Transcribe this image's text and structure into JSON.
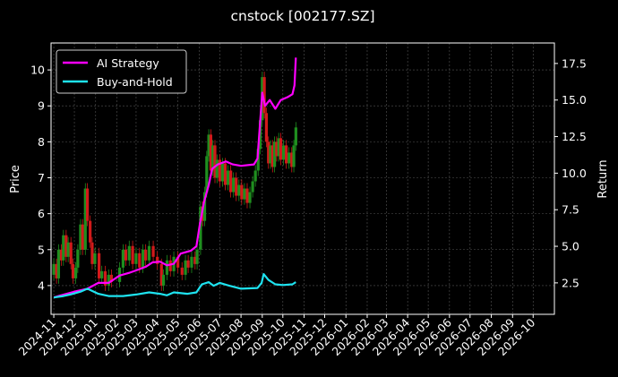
{
  "chart_data": {
    "type": "line",
    "title": "cnstock [002177.SZ]",
    "xlabel": "",
    "ylabel": "Price",
    "y2label": "Return",
    "x_ticks": [
      "2024-11",
      "2024-12",
      "2025-01",
      "2025-02",
      "2025-03",
      "2025-04",
      "2025-05",
      "2025-06",
      "2025-07",
      "2025-08",
      "2025-09",
      "2025-10",
      "2025-11",
      "2025-12",
      "2026-01",
      "2026-02",
      "2026-03",
      "2026-04",
      "2026-05",
      "2026-06",
      "2026-07",
      "2026-08",
      "2026-09",
      "2026-10"
    ],
    "y_ticks": [
      "4",
      "5",
      "6",
      "7",
      "8",
      "9",
      "10"
    ],
    "y2_ticks": [
      "2.5",
      "5.0",
      "7.5",
      "10.0",
      "12.5",
      "15.0",
      "17.5"
    ],
    "ylim": [
      3.2,
      10.75
    ],
    "y2lim": [
      0.35,
      18.9
    ],
    "xlim": [
      "2024-10-28",
      "2026-11-01"
    ],
    "grid": true,
    "legend_position": "top-left",
    "colors": {
      "background": "#000000",
      "axis": "#ffffff",
      "grid": "#555555",
      "up_candle": "#1f8f1f",
      "down_candle": "#d11a1a",
      "strategy": "#ff00ff",
      "buy_and_hold": "#1ee3f0"
    },
    "series": [
      {
        "name": "AI Strategy",
        "axis": "right",
        "points": [
          [
            "2024-11-01",
            1.5
          ],
          [
            "2024-11-08",
            1.6
          ],
          [
            "2024-11-20",
            1.75
          ],
          [
            "2024-12-05",
            1.95
          ],
          [
            "2024-12-20",
            2.1
          ],
          [
            "2025-01-05",
            2.5
          ],
          [
            "2025-01-20",
            2.5
          ],
          [
            "2025-02-05",
            3.0
          ],
          [
            "2025-02-20",
            3.2
          ],
          [
            "2025-03-01",
            3.35
          ],
          [
            "2025-03-15",
            3.6
          ],
          [
            "2025-03-25",
            3.9
          ],
          [
            "2025-04-05",
            3.95
          ],
          [
            "2025-04-15",
            3.7
          ],
          [
            "2025-04-25",
            3.8
          ],
          [
            "2025-05-05",
            4.5
          ],
          [
            "2025-05-20",
            4.7
          ],
          [
            "2025-05-28",
            5.0
          ],
          [
            "2025-06-02",
            6.5
          ],
          [
            "2025-06-08",
            8.0
          ],
          [
            "2025-06-15",
            9.2
          ],
          [
            "2025-06-20",
            10.3
          ],
          [
            "2025-06-28",
            10.6
          ],
          [
            "2025-07-10",
            10.8
          ],
          [
            "2025-07-20",
            10.6
          ],
          [
            "2025-08-01",
            10.5
          ],
          [
            "2025-08-20",
            10.6
          ],
          [
            "2025-08-25",
            11.0
          ],
          [
            "2025-09-01",
            15.5
          ],
          [
            "2025-09-05",
            14.6
          ],
          [
            "2025-09-12",
            15.0
          ],
          [
            "2025-09-20",
            14.4
          ],
          [
            "2025-09-28",
            15.0
          ],
          [
            "2025-10-08",
            15.2
          ],
          [
            "2025-10-15",
            15.4
          ],
          [
            "2025-10-18",
            16.0
          ],
          [
            "2025-10-20",
            17.9
          ]
        ]
      },
      {
        "name": "Buy-and-Hold",
        "axis": "right",
        "points": [
          [
            "2024-11-01",
            1.5
          ],
          [
            "2024-11-15",
            1.6
          ],
          [
            "2024-11-25",
            1.7
          ],
          [
            "2024-12-10",
            1.9
          ],
          [
            "2024-12-20",
            2.1
          ],
          [
            "2025-01-05",
            1.75
          ],
          [
            "2025-01-20",
            1.6
          ],
          [
            "2025-02-10",
            1.6
          ],
          [
            "2025-03-01",
            1.7
          ],
          [
            "2025-03-20",
            1.85
          ],
          [
            "2025-04-05",
            1.75
          ],
          [
            "2025-04-15",
            1.65
          ],
          [
            "2025-04-25",
            1.85
          ],
          [
            "2025-05-15",
            1.75
          ],
          [
            "2025-05-28",
            1.85
          ],
          [
            "2025-06-05",
            2.4
          ],
          [
            "2025-06-15",
            2.55
          ],
          [
            "2025-06-22",
            2.3
          ],
          [
            "2025-07-01",
            2.5
          ],
          [
            "2025-07-15",
            2.3
          ],
          [
            "2025-08-01",
            2.1
          ],
          [
            "2025-08-25",
            2.15
          ],
          [
            "2025-08-31",
            2.5
          ],
          [
            "2025-09-03",
            3.1
          ],
          [
            "2025-09-10",
            2.7
          ],
          [
            "2025-09-20",
            2.4
          ],
          [
            "2025-10-01",
            2.35
          ],
          [
            "2025-10-15",
            2.4
          ],
          [
            "2025-10-20",
            2.55
          ]
        ]
      }
    ],
    "candles_note_series": "Price candlesticks (daily open/close), left axis",
    "candles_daily": [
      [
        "2024-11-01",
        4.3,
        4.6
      ],
      [
        "2024-11-05",
        4.6,
        4.2
      ],
      [
        "2024-11-08",
        4.2,
        5.0
      ],
      [
        "2024-11-12",
        5.0,
        4.7
      ],
      [
        "2024-11-15",
        4.7,
        5.4
      ],
      [
        "2024-11-19",
        5.4,
        4.8
      ],
      [
        "2024-11-22",
        4.8,
        5.2
      ],
      [
        "2024-11-26",
        5.2,
        4.6
      ],
      [
        "2024-11-29",
        4.6,
        4.2
      ],
      [
        "2024-12-03",
        4.2,
        4.5
      ],
      [
        "2024-12-06",
        4.5,
        5.0
      ],
      [
        "2024-12-10",
        5.0,
        5.7
      ],
      [
        "2024-12-13",
        5.7,
        5.0
      ],
      [
        "2024-12-17",
        5.0,
        6.7
      ],
      [
        "2024-12-20",
        6.7,
        5.8
      ],
      [
        "2024-12-24",
        5.8,
        5.2
      ],
      [
        "2024-12-27",
        5.2,
        4.6
      ],
      [
        "2024-12-31",
        4.6,
        4.9
      ],
      [
        "2025-01-06",
        4.9,
        4.2
      ],
      [
        "2025-01-10",
        4.2,
        4.4
      ],
      [
        "2025-01-15",
        4.4,
        4.0
      ],
      [
        "2025-01-20",
        4.0,
        4.3
      ],
      [
        "2025-01-24",
        4.3,
        4.1
      ],
      [
        "2025-02-05",
        4.1,
        4.5
      ],
      [
        "2025-02-10",
        4.5,
        5.0
      ],
      [
        "2025-02-14",
        5.0,
        4.7
      ],
      [
        "2025-02-19",
        4.7,
        5.1
      ],
      [
        "2025-02-24",
        5.1,
        4.6
      ],
      [
        "2025-03-01",
        4.6,
        4.9
      ],
      [
        "2025-03-06",
        4.9,
        4.5
      ],
      [
        "2025-03-11",
        4.5,
        5.0
      ],
      [
        "2025-03-15",
        5.0,
        4.7
      ],
      [
        "2025-03-20",
        4.7,
        5.1
      ],
      [
        "2025-03-26",
        5.1,
        4.8
      ],
      [
        "2025-04-01",
        4.8,
        4.6
      ],
      [
        "2025-04-07",
        4.6,
        4.0
      ],
      [
        "2025-04-10",
        4.0,
        4.3
      ],
      [
        "2025-04-15",
        4.3,
        4.7
      ],
      [
        "2025-04-20",
        4.7,
        4.4
      ],
      [
        "2025-04-25",
        4.4,
        4.8
      ],
      [
        "2025-05-01",
        4.8,
        4.5
      ],
      [
        "2025-05-07",
        4.5,
        4.3
      ],
      [
        "2025-05-12",
        4.3,
        4.7
      ],
      [
        "2025-05-16",
        4.7,
        4.5
      ],
      [
        "2025-05-21",
        4.5,
        4.8
      ],
      [
        "2025-05-26",
        4.8,
        4.6
      ],
      [
        "2025-05-29",
        4.6,
        5.0
      ],
      [
        "2025-06-03",
        5.0,
        6.2
      ],
      [
        "2025-06-06",
        6.2,
        5.8
      ],
      [
        "2025-06-09",
        5.8,
        6.6
      ],
      [
        "2025-06-12",
        6.6,
        7.6
      ],
      [
        "2025-06-15",
        7.6,
        8.2
      ],
      [
        "2025-06-18",
        8.2,
        7.2
      ],
      [
        "2025-06-21",
        7.2,
        7.9
      ],
      [
        "2025-06-24",
        7.9,
        7.0
      ],
      [
        "2025-06-27",
        7.0,
        7.5
      ],
      [
        "2025-07-01",
        7.5,
        6.9
      ],
      [
        "2025-07-05",
        6.9,
        7.4
      ],
      [
        "2025-07-09",
        7.4,
        6.8
      ],
      [
        "2025-07-13",
        6.8,
        7.2
      ],
      [
        "2025-07-17",
        7.2,
        6.6
      ],
      [
        "2025-07-21",
        6.6,
        7.0
      ],
      [
        "2025-07-25",
        7.0,
        6.5
      ],
      [
        "2025-07-29",
        6.5,
        6.8
      ],
      [
        "2025-08-02",
        6.8,
        6.4
      ],
      [
        "2025-08-06",
        6.4,
        6.7
      ],
      [
        "2025-08-10",
        6.7,
        6.3
      ],
      [
        "2025-08-14",
        6.3,
        6.6
      ],
      [
        "2025-08-18",
        6.6,
        6.9
      ],
      [
        "2025-08-22",
        6.9,
        7.2
      ],
      [
        "2025-08-26",
        7.2,
        7.8
      ],
      [
        "2025-08-29",
        7.8,
        8.6
      ],
      [
        "2025-09-01",
        8.6,
        9.8
      ],
      [
        "2025-09-04",
        9.8,
        8.8
      ],
      [
        "2025-09-07",
        8.8,
        8.0
      ],
      [
        "2025-09-10",
        8.0,
        7.4
      ],
      [
        "2025-09-13",
        7.4,
        7.9
      ],
      [
        "2025-09-16",
        7.9,
        7.3
      ],
      [
        "2025-09-19",
        7.3,
        8.0
      ],
      [
        "2025-09-22",
        8.0,
        7.6
      ],
      [
        "2025-09-25",
        7.6,
        8.1
      ],
      [
        "2025-09-28",
        8.1,
        7.5
      ],
      [
        "2025-10-02",
        7.5,
        7.9
      ],
      [
        "2025-10-06",
        7.9,
        7.4
      ],
      [
        "2025-10-10",
        7.4,
        7.7
      ],
      [
        "2025-10-14",
        7.7,
        7.3
      ],
      [
        "2025-10-17",
        7.3,
        7.9
      ],
      [
        "2025-10-20",
        7.9,
        8.4
      ]
    ]
  }
}
